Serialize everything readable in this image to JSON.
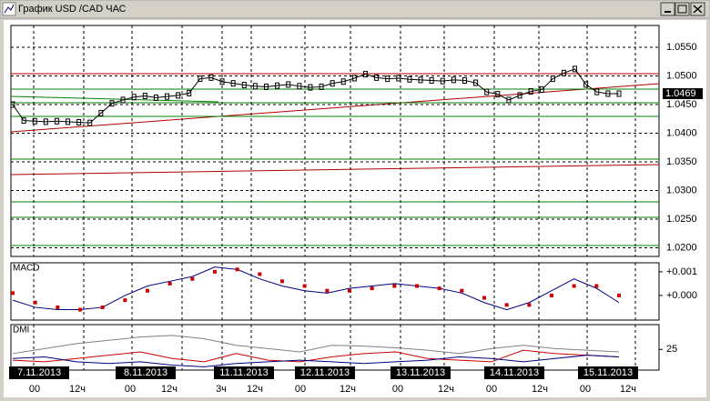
{
  "window": {
    "title": "График USD /CAD ЧАС",
    "date_labels": [
      "7.11.2013",
      "8.11.2013",
      "11.11.2013",
      "12.11.2013",
      "13.11.2013",
      "14.11.2013",
      "15.11.2013"
    ],
    "time_labels": [
      "00",
      "12ч",
      "00",
      "12ч",
      "3ч",
      "12ч",
      "00",
      "12ч",
      "00",
      "12ч",
      "00",
      "12ч",
      "00",
      "12ч"
    ]
  },
  "chart_data": [
    {
      "type": "line",
      "ylim": [
        1.0185,
        1.0588
      ],
      "yticks": [
        {
          "value": 1.055,
          "label": "1.0550"
        },
        {
          "value": 1.05,
          "label": "1.0500"
        },
        {
          "value": 1.045,
          "label": "1.0450"
        },
        {
          "value": 1.04,
          "label": "1.0400"
        },
        {
          "value": 1.035,
          "label": "1.0350"
        },
        {
          "value": 1.03,
          "label": "1.0300"
        },
        {
          "value": 1.025,
          "label": "1.0250"
        },
        {
          "value": 1.02,
          "label": "1.0200"
        }
      ],
      "grid": true,
      "current_price": {
        "value": 1.0469,
        "label": "1.0469"
      },
      "series": [
        {
          "color": "#000000",
          "values": [
            1.045,
            1.0422,
            1.0421,
            1.042,
            1.0421,
            1.042,
            1.0419,
            1.0418,
            1.0435,
            1.0452,
            1.0458,
            1.0463,
            1.0465,
            1.0462,
            1.0464,
            1.0466,
            1.047,
            1.0495,
            1.0497,
            1.049,
            1.0487,
            1.0484,
            1.0482,
            1.0481,
            1.0483,
            1.0485,
            1.0482,
            1.048,
            1.0481,
            1.0487,
            1.049,
            1.0496,
            1.0503,
            1.0497,
            1.0495,
            1.0496,
            1.0494,
            1.0493,
            1.0492,
            1.0491,
            1.0493,
            1.0492,
            1.0488,
            1.0472,
            1.0468,
            1.0458,
            1.0466,
            1.0473,
            1.0476,
            1.0495,
            1.0505,
            1.0512,
            1.0485,
            1.0472,
            1.0469,
            1.0469
          ]
        }
      ]
    },
    {
      "type": "line",
      "title": "MACD",
      "ylim": [
        -0.00104,
        0.00138
      ],
      "yticks": [
        {
          "value": 0.001,
          "label": "+0.001"
        },
        {
          "value": 0,
          "label": "+0.000"
        }
      ],
      "series": [
        {
          "color": "#000080",
          "values": [
            -0.0002,
            -0.0005,
            -0.0006,
            -0.0006,
            -0.0005,
            0.0,
            0.0004,
            0.0006,
            0.0008,
            0.0012,
            0.0011,
            0.0007,
            0.0004,
            0.0002,
            0.0001,
            0.0003,
            0.0004,
            0.0005,
            0.0004,
            0.0003,
            0.0001,
            -0.0003,
            -0.0006,
            -0.0003,
            0.0002,
            0.0007,
            0.0003,
            -0.0003
          ]
        },
        {
          "color": "#cc0000",
          "values": [
            0.0001,
            -0.0003,
            -0.0005,
            -0.0006,
            -0.0005,
            -0.0002,
            0.0002,
            0.0005,
            0.0007,
            0.001,
            0.0011,
            0.0009,
            0.0006,
            0.0004,
            0.0002,
            0.0002,
            0.0003,
            0.0004,
            0.0004,
            0.0003,
            0.0002,
            -0.0001,
            -0.0004,
            -0.0004,
            0.0,
            0.0004,
            0.0004,
            0.0
          ]
        }
      ]
    },
    {
      "type": "line",
      "title": "DMI",
      "ylim": [
        0,
        55
      ],
      "yticks": [
        25
      ],
      "series": [
        {
          "color": "#808080",
          "values": [
            20,
            26,
            32,
            36,
            40,
            42,
            38,
            30,
            26,
            22,
            30,
            29,
            27,
            24,
            20,
            26,
            30,
            26,
            24,
            22
          ]
        },
        {
          "color": "#cc0000",
          "values": [
            12,
            10,
            14,
            18,
            22,
            14,
            10,
            20,
            12,
            10,
            16,
            20,
            22,
            14,
            12,
            10,
            24,
            20,
            18,
            16
          ]
        },
        {
          "color": "#000080",
          "values": [
            14,
            16,
            10,
            8,
            10,
            6,
            4,
            8,
            10,
            12,
            10,
            8,
            10,
            12,
            16,
            14,
            10,
            14,
            18,
            16
          ]
        }
      ]
    }
  ]
}
